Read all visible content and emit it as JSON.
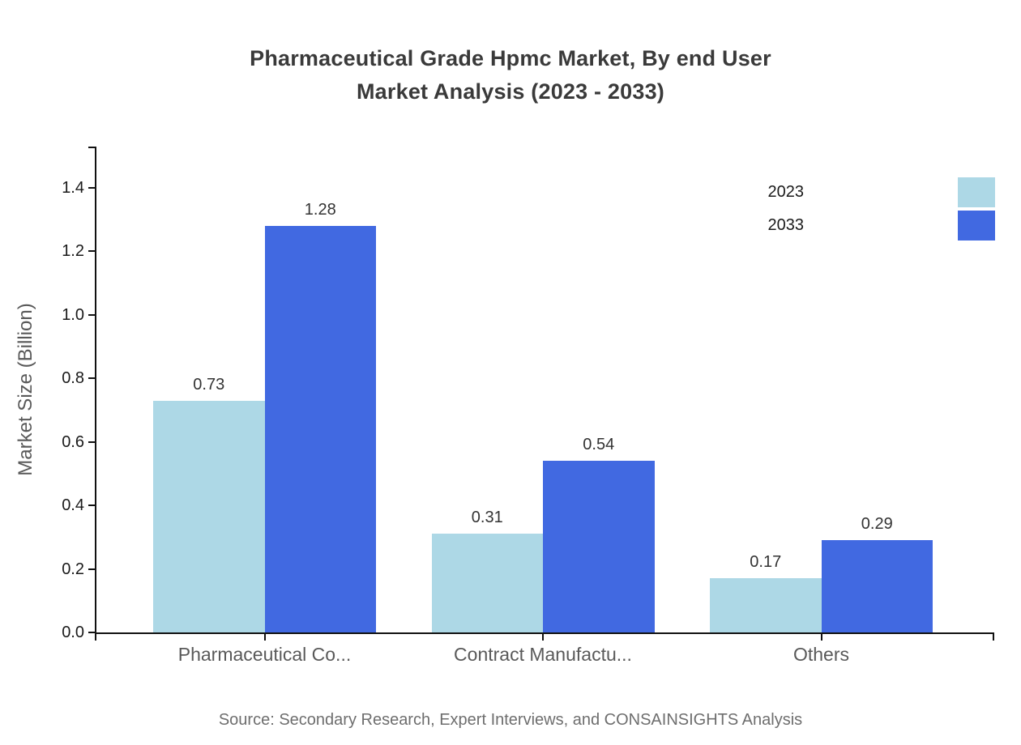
{
  "title": {
    "line1": "Pharmaceutical Grade Hpmc Market, By end User",
    "line2": "Market Analysis (2023 - 2033)"
  },
  "source_text": "Source: Secondary Research, Expert Interviews, and CONSAINSIGHTS Analysis",
  "colors": {
    "series_2023": "#ADD8E6",
    "series_2033": "#4169E1",
    "title_text": "#3a3a3a",
    "axis_line": "#111111",
    "tick_label_text": "#1a1a1a",
    "value_label_text": "#333333",
    "muted_text": "#595959",
    "source_text": "#6e6e6e",
    "background": "#ffffff"
  },
  "legend": {
    "items": [
      {
        "label": "2023",
        "color": "#ADD8E6"
      },
      {
        "label": "2033",
        "color": "#4169E1"
      }
    ]
  },
  "chart_data": {
    "type": "bar",
    "title": "Pharmaceutical Grade Hpmc Market, By end User Market Analysis (2023 - 2033)",
    "categories": [
      "Pharmaceutical Co...",
      "Contract Manufactu...",
      "Others"
    ],
    "series": [
      {
        "name": "2023",
        "color": "#ADD8E6",
        "values": [
          0.73,
          0.31,
          0.17
        ]
      },
      {
        "name": "2033",
        "color": "#4169E1",
        "values": [
          1.28,
          0.54,
          0.29
        ]
      }
    ],
    "xlabel": "",
    "ylabel": "Market Size (Billion)",
    "ylim": [
      0.0,
      1.53
    ],
    "yticks": [
      0.0,
      0.2,
      0.4,
      0.6,
      0.8,
      1.0,
      1.2,
      1.4
    ],
    "ytick_format_decimals": 1,
    "grid": false,
    "value_labels": true,
    "legend_position": "upper-right"
  }
}
